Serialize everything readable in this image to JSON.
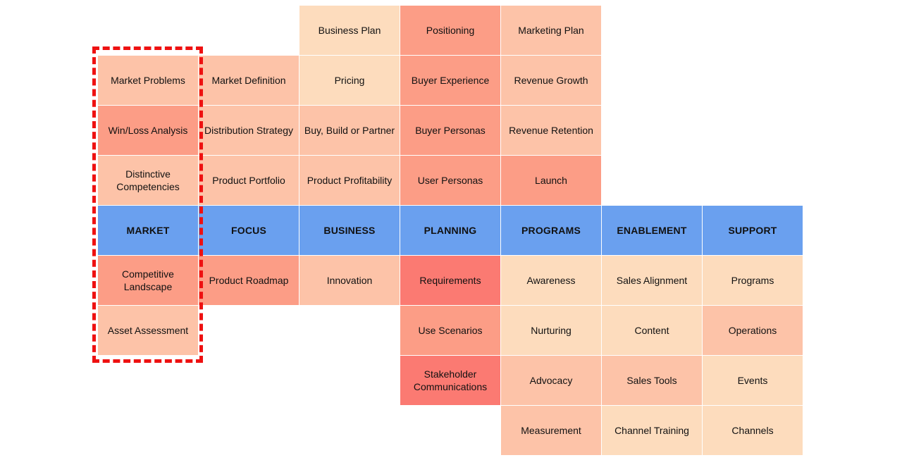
{
  "colors": {
    "header": "#6aa0ef",
    "shade1": "#fddcbd",
    "shade2": "#fdc3a8",
    "shade3": "#fc9d86",
    "shade4": "#fb7a72"
  },
  "highlight_column": "market",
  "columns": [
    {
      "id": "market",
      "header": "MARKET",
      "above": [
        {
          "label": "Market Problems",
          "shade": "shade2"
        },
        {
          "label": "Win/Loss Analysis",
          "shade": "shade3"
        },
        {
          "label": "Distinctive\nCompetencies",
          "shade": "shade2"
        }
      ],
      "below": [
        {
          "label": "Competitive\nLandscape",
          "shade": "shade3"
        },
        {
          "label": "Asset Assessment",
          "shade": "shade2"
        }
      ]
    },
    {
      "id": "focus",
      "header": "FOCUS",
      "above": [
        {
          "label": "Market Definition",
          "shade": "shade2"
        },
        {
          "label": "Distribution Strategy",
          "shade": "shade2"
        },
        {
          "label": "Product Portfolio",
          "shade": "shade2"
        }
      ],
      "below": [
        {
          "label": "Product Roadmap",
          "shade": "shade3"
        }
      ]
    },
    {
      "id": "business",
      "header": "BUSINESS",
      "above": [
        {
          "label": "Business Plan",
          "shade": "shade1"
        },
        {
          "label": "Pricing",
          "shade": "shade1"
        },
        {
          "label": "Buy, Build or Partner",
          "shade": "shade2"
        },
        {
          "label": "Product Profitability",
          "shade": "shade2"
        }
      ],
      "below": [
        {
          "label": "Innovation",
          "shade": "shade2"
        }
      ]
    },
    {
      "id": "planning",
      "header": "PLANNING",
      "above": [
        {
          "label": "Positioning",
          "shade": "shade3"
        },
        {
          "label": "Buyer Experience",
          "shade": "shade3"
        },
        {
          "label": "Buyer Personas",
          "shade": "shade3"
        },
        {
          "label": "User Personas",
          "shade": "shade3"
        }
      ],
      "below": [
        {
          "label": "Requirements",
          "shade": "shade4"
        },
        {
          "label": "Use Scenarios",
          "shade": "shade3"
        },
        {
          "label": "Stakeholder\nCommunications",
          "shade": "shade4"
        }
      ]
    },
    {
      "id": "programs",
      "header": "PROGRAMS",
      "above": [
        {
          "label": "Marketing Plan",
          "shade": "shade2"
        },
        {
          "label": "Revenue Growth",
          "shade": "shade2"
        },
        {
          "label": "Revenue Retention",
          "shade": "shade2"
        },
        {
          "label": "Launch",
          "shade": "shade3"
        }
      ],
      "below": [
        {
          "label": "Awareness",
          "shade": "shade1"
        },
        {
          "label": "Nurturing",
          "shade": "shade1"
        },
        {
          "label": "Advocacy",
          "shade": "shade2"
        },
        {
          "label": "Measurement",
          "shade": "shade2"
        }
      ]
    },
    {
      "id": "enablement",
      "header": "ENABLEMENT",
      "above": [],
      "below": [
        {
          "label": "Sales Alignment",
          "shade": "shade1"
        },
        {
          "label": "Content",
          "shade": "shade1"
        },
        {
          "label": "Sales Tools",
          "shade": "shade2"
        },
        {
          "label": "Channel Training",
          "shade": "shade1"
        }
      ]
    },
    {
      "id": "support",
      "header": "SUPPORT",
      "above": [],
      "below": [
        {
          "label": "Programs",
          "shade": "shade1"
        },
        {
          "label": "Operations",
          "shade": "shade2"
        },
        {
          "label": "Events",
          "shade": "shade1"
        },
        {
          "label": "Channels",
          "shade": "shade1"
        }
      ]
    }
  ]
}
